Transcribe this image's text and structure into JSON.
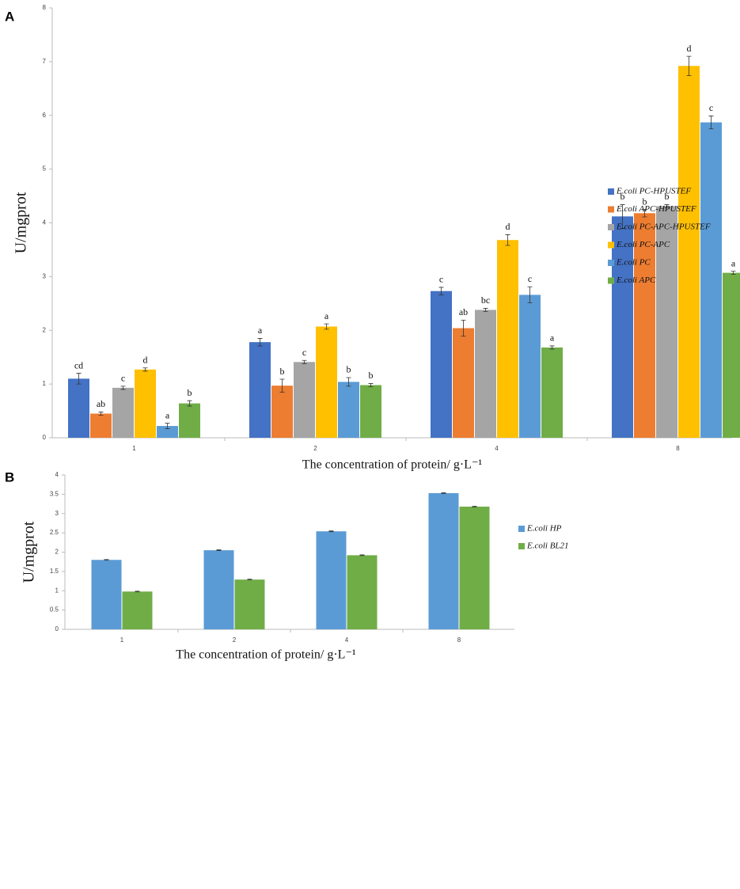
{
  "chart_data": [
    {
      "type": "bar",
      "panel": "A",
      "ylabel": "U/mgprot",
      "xlabel": "The concentration of protein/ g·L⁻¹",
      "categories": [
        "1",
        "2",
        "4",
        "8"
      ],
      "ylim": [
        0,
        8
      ],
      "yticks": [
        0,
        1,
        2,
        3,
        4,
        5,
        6,
        7,
        8
      ],
      "legend": "right",
      "series": [
        {
          "name": "E.coli PC-HPUSTEF",
          "color": "#4472c4",
          "values": [
            1.1,
            1.78,
            2.73,
            4.12
          ],
          "errors": [
            0.1,
            0.07,
            0.07,
            0.22
          ],
          "annotations": [
            "cd",
            "a",
            "c",
            "b"
          ]
        },
        {
          "name": "E.coli APC-HPUSTEF",
          "color": "#ed7d31",
          "values": [
            0.45,
            0.97,
            2.04,
            4.18
          ],
          "errors": [
            0.03,
            0.12,
            0.15,
            0.07
          ],
          "annotations": [
            "ab",
            "b",
            "ab",
            "b"
          ]
        },
        {
          "name": "E.coli PC-APC-HPUSTEF",
          "color": "#a5a5a5",
          "values": [
            0.93,
            1.41,
            2.38,
            4.31
          ],
          "errors": [
            0.03,
            0.03,
            0.03,
            0.03
          ],
          "annotations": [
            "c",
            "c",
            "bc",
            "b"
          ]
        },
        {
          "name": "E.coli PC-APC",
          "color": "#ffc000",
          "values": [
            1.27,
            2.07,
            3.68,
            6.92
          ],
          "errors": [
            0.03,
            0.05,
            0.1,
            0.18
          ],
          "annotations": [
            "d",
            "a",
            "d",
            "d"
          ]
        },
        {
          "name": "E.coli PC",
          "color": "#5b9bd5",
          "values": [
            0.22,
            1.04,
            2.66,
            5.87
          ],
          "errors": [
            0.05,
            0.08,
            0.15,
            0.12
          ],
          "annotations": [
            "a",
            "b",
            "c",
            "c"
          ]
        },
        {
          "name": "E.coli APC",
          "color": "#70ad47",
          "values": [
            0.64,
            0.98,
            1.68,
            3.07
          ],
          "errors": [
            0.05,
            0.03,
            0.03,
            0.03
          ],
          "annotations": [
            "b",
            "b",
            "a",
            "a"
          ]
        }
      ]
    },
    {
      "type": "bar",
      "panel": "B",
      "ylabel": "U/mgprot",
      "xlabel": "The concentration of protein/ g·L⁻¹",
      "categories": [
        "1",
        "2",
        "4",
        "8"
      ],
      "ylim": [
        0,
        4
      ],
      "yticks": [
        0,
        0.5,
        1,
        1.5,
        2,
        2.5,
        3,
        3.5,
        4
      ],
      "legend": "right",
      "series": [
        {
          "name": "E.coli HP",
          "color": "#5b9bd5",
          "values": [
            1.8,
            2.05,
            2.54,
            3.53
          ],
          "errors": [
            0.01,
            0.01,
            0.01,
            0.01
          ]
        },
        {
          "name": "E.coli BL21",
          "color": "#70ad47",
          "values": [
            0.98,
            1.29,
            1.92,
            3.18
          ],
          "errors": [
            0.01,
            0.01,
            0.01,
            0.01
          ]
        }
      ]
    }
  ]
}
